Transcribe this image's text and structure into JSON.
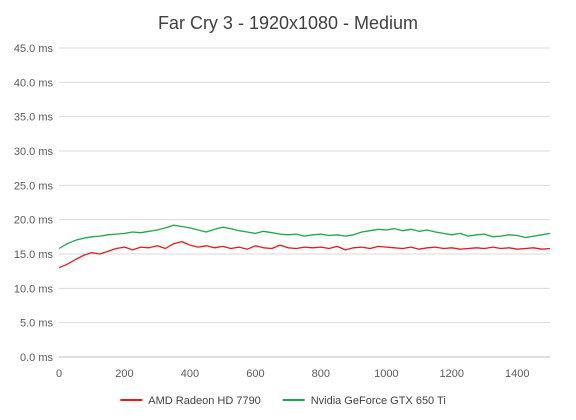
{
  "chart_data": {
    "type": "line",
    "title": "Far Cry 3 - 1920x1080 - Medium",
    "xlabel": "",
    "ylabel": "",
    "xlim": [
      0,
      1500
    ],
    "ylim": [
      0,
      45
    ],
    "x_ticks": [
      0,
      200,
      400,
      600,
      800,
      1000,
      1200,
      1400
    ],
    "y_ticks": [
      "0.0 ms",
      "5.0 ms",
      "10.0 ms",
      "15.0 ms",
      "20.0 ms",
      "25.0 ms",
      "30.0 ms",
      "35.0 ms",
      "40.0 ms",
      "45.0 ms"
    ],
    "grid": "horizontal",
    "legend_position": "bottom",
    "series": [
      {
        "name": "AMD Radeon HD 7790",
        "color": "#e8191b",
        "x": [
          0,
          25,
          50,
          75,
          100,
          125,
          150,
          175,
          200,
          225,
          250,
          275,
          300,
          325,
          350,
          375,
          400,
          425,
          450,
          475,
          500,
          525,
          550,
          575,
          600,
          625,
          650,
          675,
          700,
          725,
          750,
          775,
          800,
          825,
          850,
          875,
          900,
          925,
          950,
          975,
          1000,
          1025,
          1050,
          1075,
          1100,
          1125,
          1150,
          1175,
          1200,
          1225,
          1250,
          1275,
          1300,
          1325,
          1350,
          1375,
          1400,
          1425,
          1450,
          1475,
          1500
        ],
        "values": [
          13.0,
          13.5,
          14.2,
          14.8,
          15.2,
          15.0,
          15.4,
          15.8,
          16.0,
          15.6,
          16.0,
          15.9,
          16.2,
          15.8,
          16.5,
          16.8,
          16.3,
          16.0,
          16.2,
          15.9,
          16.1,
          15.8,
          16.0,
          15.7,
          16.2,
          15.9,
          15.8,
          16.3,
          15.9,
          15.8,
          16.0,
          15.9,
          16.0,
          15.8,
          16.1,
          15.6,
          15.9,
          16.0,
          15.8,
          16.1,
          16.0,
          15.9,
          15.8,
          16.0,
          15.7,
          15.9,
          16.0,
          15.8,
          15.9,
          15.7,
          15.8,
          15.9,
          15.8,
          16.0,
          15.8,
          15.9,
          15.7,
          15.8,
          15.9,
          15.7,
          15.8
        ]
      },
      {
        "name": "Nvidia GeForce GTX 650 Ti",
        "color": "#1ea64a",
        "x": [
          0,
          25,
          50,
          75,
          100,
          125,
          150,
          175,
          200,
          225,
          250,
          275,
          300,
          325,
          350,
          375,
          400,
          425,
          450,
          475,
          500,
          525,
          550,
          575,
          600,
          625,
          650,
          675,
          700,
          725,
          750,
          775,
          800,
          825,
          850,
          875,
          900,
          925,
          950,
          975,
          1000,
          1025,
          1050,
          1075,
          1100,
          1125,
          1150,
          1175,
          1200,
          1225,
          1250,
          1275,
          1300,
          1325,
          1350,
          1375,
          1400,
          1425,
          1450,
          1475,
          1500
        ],
        "values": [
          15.8,
          16.5,
          17.0,
          17.3,
          17.5,
          17.6,
          17.8,
          17.9,
          18.0,
          18.2,
          18.1,
          18.3,
          18.5,
          18.8,
          19.2,
          19.0,
          18.8,
          18.5,
          18.2,
          18.6,
          18.9,
          18.7,
          18.4,
          18.2,
          18.0,
          18.3,
          18.1,
          17.9,
          17.8,
          17.9,
          17.6,
          17.8,
          17.9,
          17.7,
          17.8,
          17.6,
          17.8,
          18.2,
          18.4,
          18.6,
          18.5,
          18.7,
          18.4,
          18.6,
          18.3,
          18.5,
          18.2,
          18.0,
          17.8,
          18.0,
          17.6,
          17.8,
          17.9,
          17.5,
          17.6,
          17.8,
          17.7,
          17.4,
          17.6,
          17.8,
          18.0
        ]
      }
    ]
  }
}
